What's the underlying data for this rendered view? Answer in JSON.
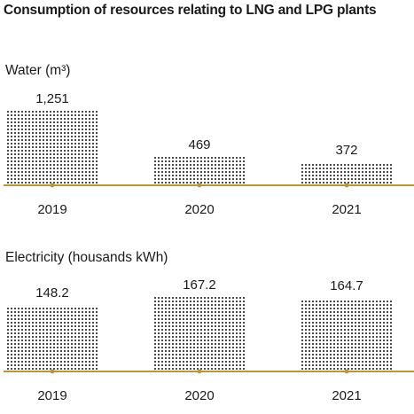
{
  "title": "Consumption of resources relating to LNG and LPG plants",
  "colors": {
    "dots": "#1a1a1a",
    "baseline": "#b8963c",
    "text": "#1a1a1a"
  },
  "chart_data": [
    {
      "type": "bar",
      "ylabel": "Water (m³)",
      "categories": [
        "2019",
        "2020",
        "2021"
      ],
      "values": [
        1251,
        469,
        372
      ],
      "value_labels": [
        "1,251",
        "469",
        "372"
      ],
      "ylim": [
        0,
        1251
      ]
    },
    {
      "type": "bar",
      "ylabel": "Electricity (housands kWh)",
      "categories": [
        "2019",
        "2020",
        "2021"
      ],
      "values": [
        148.2,
        167.2,
        164.7
      ],
      "value_labels": [
        "148.2",
        "167.2",
        "164.7"
      ],
      "ylim": [
        0,
        167.2
      ]
    }
  ]
}
